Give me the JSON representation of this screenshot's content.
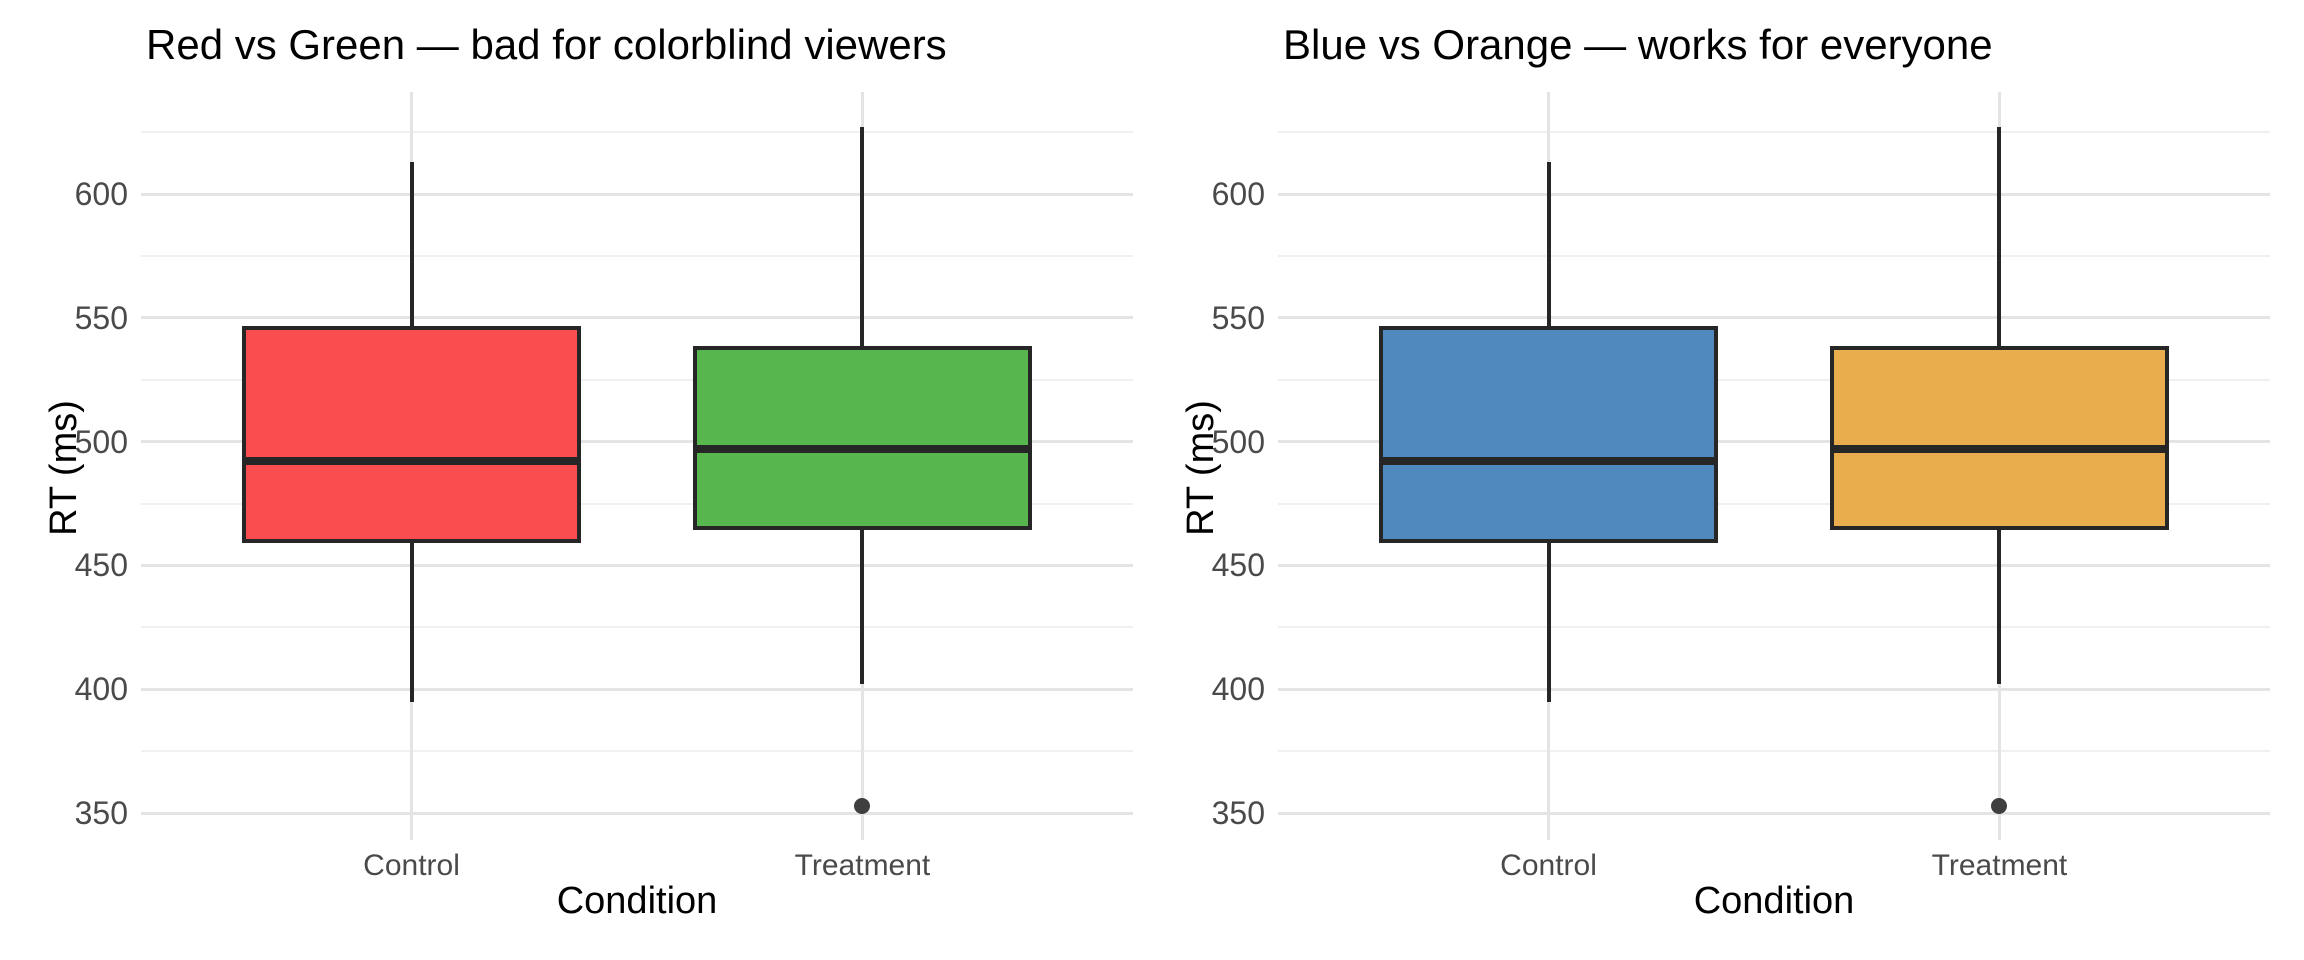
{
  "figure": {
    "background": "#ffffff",
    "colors": {
      "box_border": "#262626",
      "median_line": "#262626",
      "whisker": "#262626",
      "outlier_point": "#3f3f3f",
      "grid_major": "#e4e4e4",
      "grid_minor": "#f0f0f0",
      "axis_text": "#4a4a4a",
      "title_text": "#000000"
    }
  },
  "chart_data": [
    {
      "type": "boxplot",
      "title": "Red vs Green — bad for colorblind viewers",
      "xlabel": "Condition",
      "ylabel": "RT (ms)",
      "categories": [
        "Control",
        "Treatment"
      ],
      "y_ticks": [
        350,
        400,
        450,
        500,
        550,
        600
      ],
      "ylim": [
        339,
        641
      ],
      "grid": "horizontal major+minor, vertical major at categories, no legend",
      "series": [
        {
          "name": "Control",
          "color": "#fa4d50",
          "whisker_low": 395,
          "q1": 460,
          "median": 492,
          "q3": 546,
          "whisker_high": 613,
          "outliers": []
        },
        {
          "name": "Treatment",
          "color": "#57b64e",
          "whisker_low": 402,
          "q1": 465,
          "median": 497,
          "q3": 538,
          "whisker_high": 627,
          "outliers": [
            353
          ]
        }
      ]
    },
    {
      "type": "boxplot",
      "title": "Blue vs Orange — works for everyone",
      "xlabel": "Condition",
      "ylabel": "RT (ms)",
      "categories": [
        "Control",
        "Treatment"
      ],
      "y_ticks": [
        350,
        400,
        450,
        500,
        550,
        600
      ],
      "ylim": [
        339,
        641
      ],
      "grid": "horizontal major+minor, vertical major at categories, no legend",
      "series": [
        {
          "name": "Control",
          "color": "#5089be",
          "whisker_low": 395,
          "q1": 460,
          "median": 492,
          "q3": 546,
          "whisker_high": 613,
          "outliers": []
        },
        {
          "name": "Treatment",
          "color": "#e9ad4d",
          "whisker_low": 402,
          "q1": 465,
          "median": 497,
          "q3": 538,
          "whisker_high": 627,
          "outliers": [
            353
          ]
        }
      ]
    }
  ]
}
